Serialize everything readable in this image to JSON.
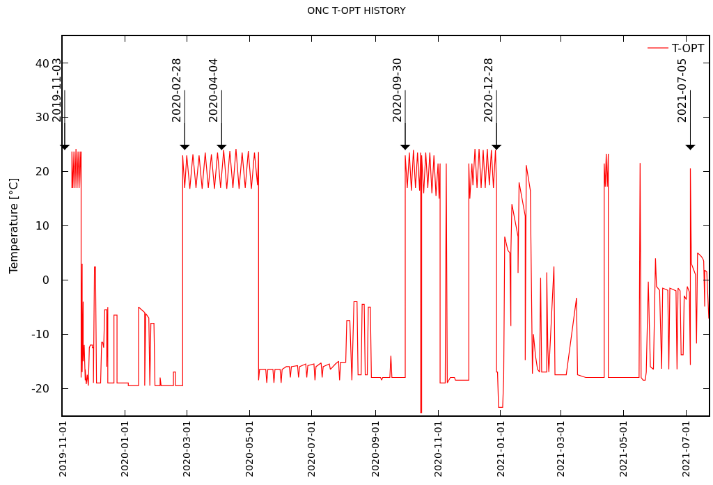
{
  "chart_data": {
    "type": "line",
    "title": "ONC T-OPT HISTORY",
    "ylabel": "Temperature [°C]",
    "xlim": [
      "2019-11-01",
      "2021-07-23"
    ],
    "xticks": [
      "2019-11-01",
      "2020-01-01",
      "2020-03-01",
      "2020-05-01",
      "2020-07-01",
      "2020-09-01",
      "2020-11-01",
      "2021-01-01",
      "2021-03-01",
      "2021-05-01",
      "2021-07-01"
    ],
    "ylim": [
      -25,
      45
    ],
    "yticks": [
      -20,
      -10,
      0,
      10,
      20,
      30,
      40
    ],
    "legend": "top right",
    "line_style": "solid",
    "annotations": [
      "2019-11-03",
      "2020-02-28",
      {
        "text": "2020-04-04",
        "x": "2020-04-04",
        "y": 24
      },
      "2020-09-30",
      {
        "text": "2020-12-28",
        "x": "2020-12-28",
        "y": 24
      },
      "2021-07-05"
    ],
    "series": [
      {
        "name": "T-OPT",
        "color": "#ff0000",
        "x": [
          "2019-11-10",
          "2019-11-10",
          "2019-11-11",
          "2019-11-12",
          "2019-11-13",
          "2019-11-14",
          "2019-11-15",
          "2019-11-16",
          "2019-11-17",
          "2019-11-18",
          "2019-11-19",
          "2019-11-19",
          "2019-11-19",
          "2019-11-20",
          "2019-11-20",
          "2019-11-21",
          "2019-11-21",
          "2019-11-22",
          "2019-11-23",
          "2019-11-23",
          "2019-11-24",
          "2019-11-25",
          "2019-11-26",
          "2019-11-27",
          "2019-11-28",
          "2019-11-30",
          "2019-11-30",
          "2019-12-01",
          "2019-12-01",
          "2019-12-02",
          "2019-12-03",
          "2019-12-04",
          "2019-12-08",
          "2019-12-09",
          "2019-12-10",
          "2019-12-11",
          "2019-12-12",
          "2019-12-14",
          "2019-12-14",
          "2019-12-15",
          "2019-12-15",
          "2019-12-21",
          "2019-12-21",
          "2019-12-24",
          "2019-12-24",
          "2020-01-04",
          "2020-01-04",
          "2020-01-14",
          "2020-01-14",
          "2020-01-17",
          "2020-01-20",
          "2020-01-20",
          "2020-01-21",
          "2020-01-24",
          "2020-01-25",
          "2020-01-26",
          "2020-01-29",
          "2020-01-30",
          "2020-02-04",
          "2020-02-04",
          "2020-02-05",
          "2020-02-17",
          "2020-02-17",
          "2020-02-19",
          "2020-02-19",
          "2020-02-26",
          "2020-02-26",
          "2020-02-28",
          "2020-03-01",
          "2020-03-04",
          "2020-03-07",
          "2020-03-10",
          "2020-03-13",
          "2020-03-16",
          "2020-03-19",
          "2020-03-22",
          "2020-03-25",
          "2020-03-28",
          "2020-03-31",
          "2020-04-03",
          "2020-04-06",
          "2020-04-09",
          "2020-04-12",
          "2020-04-15",
          "2020-04-18",
          "2020-04-21",
          "2020-04-24",
          "2020-04-27",
          "2020-04-30",
          "2020-05-03",
          "2020-05-06",
          "2020-05-09",
          "2020-05-10",
          "2020-05-10",
          "2020-05-11",
          "2020-05-17",
          "2020-05-18",
          "2020-05-19",
          "2020-05-24",
          "2020-05-25",
          "2020-05-26",
          "2020-05-31",
          "2020-06-01",
          "2020-06-02",
          "2020-06-06",
          "2020-06-09",
          "2020-06-10",
          "2020-06-11",
          "2020-06-17",
          "2020-06-18",
          "2020-06-19",
          "2020-06-25",
          "2020-06-26",
          "2020-06-27",
          "2020-07-03",
          "2020-07-04",
          "2020-07-05",
          "2020-07-10",
          "2020-07-11",
          "2020-07-12",
          "2020-07-18",
          "2020-07-19",
          "2020-07-24",
          "2020-07-27",
          "2020-07-28",
          "2020-07-29",
          "2020-08-03",
          "2020-08-04",
          "2020-08-07",
          "2020-08-09",
          "2020-08-11",
          "2020-08-14",
          "2020-08-15",
          "2020-08-18",
          "2020-08-19",
          "2020-08-21",
          "2020-08-22",
          "2020-08-24",
          "2020-08-25",
          "2020-08-27",
          "2020-08-28",
          "2020-09-06",
          "2020-09-07",
          "2020-09-08",
          "2020-09-15",
          "2020-09-16",
          "2020-09-17",
          "2020-09-30",
          "2020-09-30",
          "2020-10-02",
          "2020-10-04",
          "2020-10-06",
          "2020-10-08",
          "2020-10-10",
          "2020-10-12",
          "2020-10-14",
          "2020-10-15",
          "2020-10-15",
          "2020-10-16",
          "2020-10-16",
          "2020-10-18",
          "2020-10-20",
          "2020-10-22",
          "2020-10-24",
          "2020-10-26",
          "2020-10-28",
          "2020-10-30",
          "2020-11-01",
          "2020-11-02",
          "2020-11-03",
          "2020-11-03",
          "2020-11-08",
          "2020-11-09",
          "2020-11-10",
          "2020-11-13",
          "2020-11-17",
          "2020-11-18",
          "2020-12-01",
          "2020-12-01",
          "2020-12-02",
          "2020-12-04",
          "2020-12-05",
          "2020-12-07",
          "2020-12-09",
          "2020-12-11",
          "2020-12-13",
          "2020-12-15",
          "2020-12-17",
          "2020-12-19",
          "2020-12-21",
          "2020-12-23",
          "2020-12-25",
          "2020-12-27",
          "2020-12-28",
          "2020-12-28",
          "2020-12-29",
          "2020-12-30",
          "2021-01-03",
          "2021-01-04",
          "2021-01-05",
          "2021-01-08",
          "2021-01-10",
          "2021-01-11",
          "2021-01-11",
          "2021-01-12",
          "2021-01-18",
          "2021-01-18",
          "2021-01-19",
          "2021-01-25",
          "2021-01-25",
          "2021-01-26",
          "2021-01-30",
          "2021-02-01",
          "2021-02-02",
          "2021-02-04",
          "2021-02-06",
          "2021-02-08",
          "2021-02-09",
          "2021-02-10",
          "2021-02-15",
          "2021-02-15",
          "2021-02-16",
          "2021-02-17",
          "2021-02-22",
          "2021-02-23",
          "2021-03-06",
          "2021-03-16",
          "2021-03-17",
          "2021-03-25",
          "2021-04-12",
          "2021-04-12",
          "2021-04-13",
          "2021-04-14",
          "2021-04-15",
          "2021-04-16",
          "2021-04-16",
          "2021-05-16",
          "2021-05-17",
          "2021-05-18",
          "2021-05-20",
          "2021-05-22",
          "2021-05-23",
          "2021-05-25",
          "2021-05-27",
          "2021-05-30",
          "2021-06-01",
          "2021-06-02",
          "2021-06-05",
          "2021-06-07",
          "2021-06-08",
          "2021-06-13",
          "2021-06-14",
          "2021-06-15",
          "2021-06-21",
          "2021-06-22",
          "2021-06-23",
          "2021-06-25",
          "2021-06-26",
          "2021-06-28",
          "2021-06-29",
          "2021-07-01",
          "2021-07-02",
          "2021-07-04",
          "2021-07-05",
          "2021-07-05",
          "2021-07-06",
          "2021-07-08",
          "2021-07-10",
          "2021-07-11",
          "2021-07-12",
          "2021-07-15",
          "2021-07-17",
          "2021-07-18",
          "2021-07-19",
          "2021-07-19",
          "2021-07-21",
          "2021-07-23"
        ],
        "values": [
          17,
          23.7,
          17,
          23.7,
          17,
          24.2,
          17,
          23.7,
          17,
          23.7,
          17,
          23.7,
          -18,
          3,
          -17,
          -4,
          -15,
          -12,
          -18.5,
          -16.5,
          -19.2,
          -17.5,
          -19.5,
          -12.5,
          -12,
          -12,
          -12.5,
          -12.5,
          -19,
          2.4,
          2.4,
          -19,
          -19,
          -11.5,
          -11.5,
          -12.5,
          -5.5,
          -5.5,
          -16,
          -5,
          -19,
          -19,
          -6.5,
          -6.5,
          -19,
          -19,
          -19.5,
          -19.5,
          -5,
          -5.5,
          -6,
          -19.5,
          -6.2,
          -7,
          -19.5,
          -8,
          -8,
          -19.5,
          -19.5,
          -18,
          -19.5,
          -19.5,
          -17,
          -17,
          -19.5,
          -19.5,
          23,
          17,
          23,
          16.8,
          23.2,
          17,
          23,
          16.8,
          23.5,
          17,
          23.2,
          16.8,
          23.5,
          17,
          24,
          16.8,
          23.8,
          17,
          24.2,
          16.8,
          23.5,
          17,
          23.8,
          16.8,
          23.5,
          17.5,
          23.6,
          -18.5,
          -16.5,
          -16.5,
          -19,
          -16.5,
          -16.5,
          -19,
          -16.5,
          -16.5,
          -19,
          -16.5,
          -16,
          -16,
          -18,
          -16,
          -15.8,
          -18,
          -16,
          -15.5,
          -18,
          -15.8,
          -15.5,
          -18.5,
          -16,
          -15.3,
          -18,
          -16,
          -15.5,
          -16.5,
          -15.5,
          -15,
          -18.5,
          -15.2,
          -15.2,
          -7.5,
          -7.5,
          -18.5,
          -4,
          -4,
          -17.5,
          -17.5,
          -4.5,
          -4.5,
          -17.5,
          -17.5,
          -5,
          -5,
          -18,
          -18,
          -18.5,
          -18,
          -18,
          -14,
          -18,
          -18,
          23,
          17,
          23.5,
          16.5,
          24,
          17,
          23.5,
          16.5,
          23.5,
          -24.5,
          -24.5,
          23,
          16,
          23.5,
          17,
          23.5,
          16,
          23,
          15.5,
          21.5,
          15,
          21.5,
          -19,
          -19,
          21.5,
          -19,
          -18,
          -18,
          -18.5,
          -18.5,
          21.5,
          15,
          21.5,
          17.5,
          24.2,
          17,
          24.2,
          17,
          24,
          17,
          24.2,
          17.5,
          24,
          17,
          24,
          17.5,
          -17,
          -17,
          -23.5,
          -23.5,
          -18,
          8,
          5.5,
          5,
          -8.5,
          5,
          14,
          8,
          1.3,
          18,
          11.8,
          -14.8,
          21.2,
          16.5,
          -17.3,
          -10,
          -14,
          -16.5,
          -17,
          0.4,
          -17,
          -17,
          1.4,
          -12.3,
          -17,
          2.5,
          -17.5,
          -17.5,
          -3.3,
          -17.5,
          -18,
          -18,
          21.5,
          17.2,
          23.3,
          17.2,
          23.3,
          -18,
          -18,
          21.6,
          -18,
          -18.5,
          -18.5,
          -17,
          -0.3,
          -16,
          -16.5,
          4,
          -1.2,
          -1.9,
          -16.4,
          -1.5,
          -1.9,
          -16.5,
          -1.5,
          -2,
          -16.5,
          -1.5,
          -2,
          -13.8,
          -13.8,
          -2.9,
          -3.6,
          -1.2,
          -2.2,
          -15.7,
          20.6,
          3,
          2,
          1,
          -11.7,
          5,
          4.5,
          4,
          3.5,
          -4.9,
          1.8,
          1.5,
          -7.1
        ]
      }
    ]
  }
}
